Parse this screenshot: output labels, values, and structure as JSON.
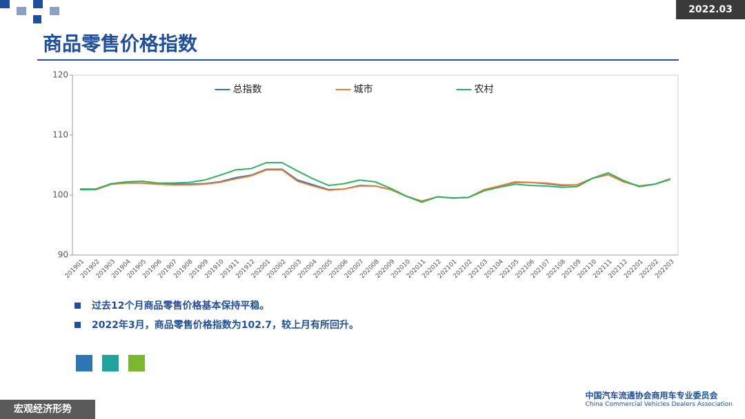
{
  "header": {
    "date": "2022.03",
    "title": "商品零售价格指数"
  },
  "chart_data": {
    "type": "line",
    "categories": [
      "201901",
      "201902",
      "201903",
      "201904",
      "201905",
      "201906",
      "201907",
      "201908",
      "201909",
      "201910",
      "201911",
      "201912",
      "202001",
      "202002",
      "202003",
      "202004",
      "202005",
      "202006",
      "202007",
      "202008",
      "202009",
      "202010",
      "202011",
      "202012",
      "202101",
      "202102",
      "202103",
      "202104",
      "202105",
      "202106",
      "202107",
      "202108",
      "202109",
      "202110",
      "202111",
      "202112",
      "202201",
      "202202",
      "202203"
    ],
    "series": [
      {
        "name": "总指数",
        "color": "#2e75b6",
        "values": [
          100.9,
          100.9,
          101.8,
          102.0,
          102.0,
          101.8,
          101.8,
          101.8,
          101.9,
          102.2,
          102.9,
          103.3,
          104.3,
          104.3,
          102.5,
          101.7,
          100.9,
          101.0,
          101.6,
          101.5,
          100.9,
          99.8,
          98.9,
          99.7,
          99.5,
          99.6,
          100.8,
          101.5,
          102.1,
          102.1,
          101.9,
          101.6,
          101.7,
          102.8,
          103.4,
          102.2,
          101.5,
          101.8,
          102.7
        ]
      },
      {
        "name": "城市",
        "color": "#ed7d31",
        "values": [
          101.0,
          100.9,
          101.8,
          102.0,
          102.0,
          101.8,
          101.7,
          101.7,
          101.8,
          102.1,
          102.7,
          103.2,
          104.2,
          104.2,
          102.3,
          101.5,
          100.8,
          101.0,
          101.5,
          101.5,
          100.9,
          99.8,
          99.0,
          99.7,
          99.5,
          99.6,
          100.9,
          101.5,
          102.2,
          102.1,
          102.0,
          101.7,
          101.7,
          102.8,
          103.4,
          102.2,
          101.5,
          101.8,
          102.7
        ]
      },
      {
        "name": "农村",
        "color": "#2db35d",
        "values": [
          101.0,
          101.0,
          101.9,
          102.2,
          102.3,
          102.0,
          102.0,
          102.1,
          102.5,
          103.3,
          104.2,
          104.4,
          105.4,
          105.4,
          104.0,
          102.7,
          101.6,
          101.9,
          102.5,
          102.2,
          101.1,
          99.8,
          98.8,
          99.7,
          99.5,
          99.6,
          100.7,
          101.3,
          101.8,
          101.6,
          101.5,
          101.3,
          101.4,
          102.8,
          103.7,
          102.4,
          101.4,
          101.8,
          102.6
        ]
      }
    ],
    "ylim": [
      90,
      120
    ],
    "yticks": [
      90,
      100,
      110,
      120
    ],
    "grid": false,
    "legend": "top"
  },
  "bullets": [
    "过去12个月商品零售价格基本保持平稳。",
    "2022年3月，商品零售价格指数为102.7，较上月有所回升。"
  ],
  "footer": {
    "section": "宏观经济形势",
    "org_cn": "中国汽车流通协会商用车专业委员会",
    "org_en": "China Commercial Vehicles Dealers Association"
  }
}
